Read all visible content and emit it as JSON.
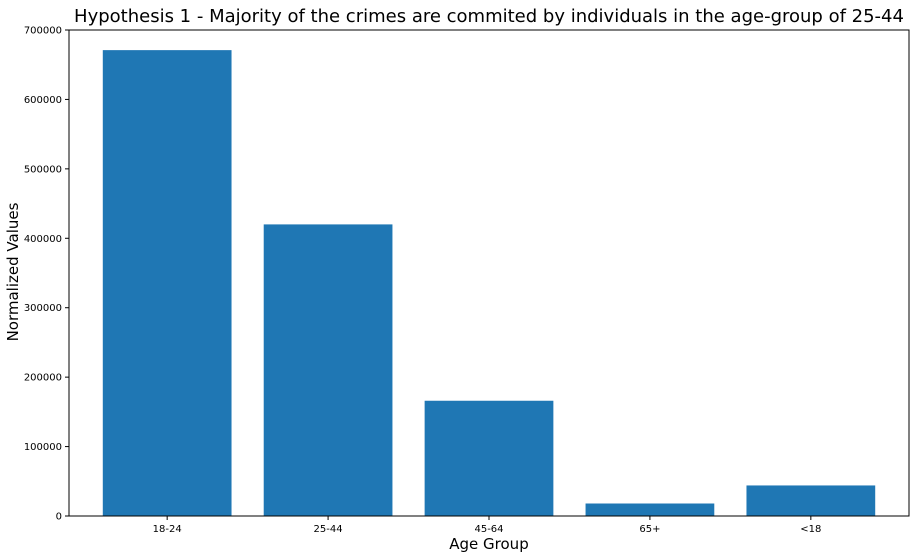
{
  "chart_data": {
    "type": "bar",
    "title": "Hypothesis 1 - Majority of the crimes are commited by individuals in the age-group of 25-44",
    "xlabel": "Age Group",
    "ylabel": "Normalized Values",
    "categories": [
      "18-24",
      "25-44",
      "45-64",
      "65+",
      "<18"
    ],
    "values": [
      671000,
      420000,
      166000,
      18000,
      44000
    ],
    "ylim": [
      0,
      700000
    ],
    "yticks": [
      0,
      100000,
      200000,
      300000,
      400000,
      500000,
      600000,
      700000
    ],
    "ytick_labels": [
      "0",
      "100000",
      "200000",
      "300000",
      "400000",
      "500000",
      "600000",
      "700000"
    ],
    "bar_color": "#1f77b4",
    "grid": false,
    "legend": false
  }
}
